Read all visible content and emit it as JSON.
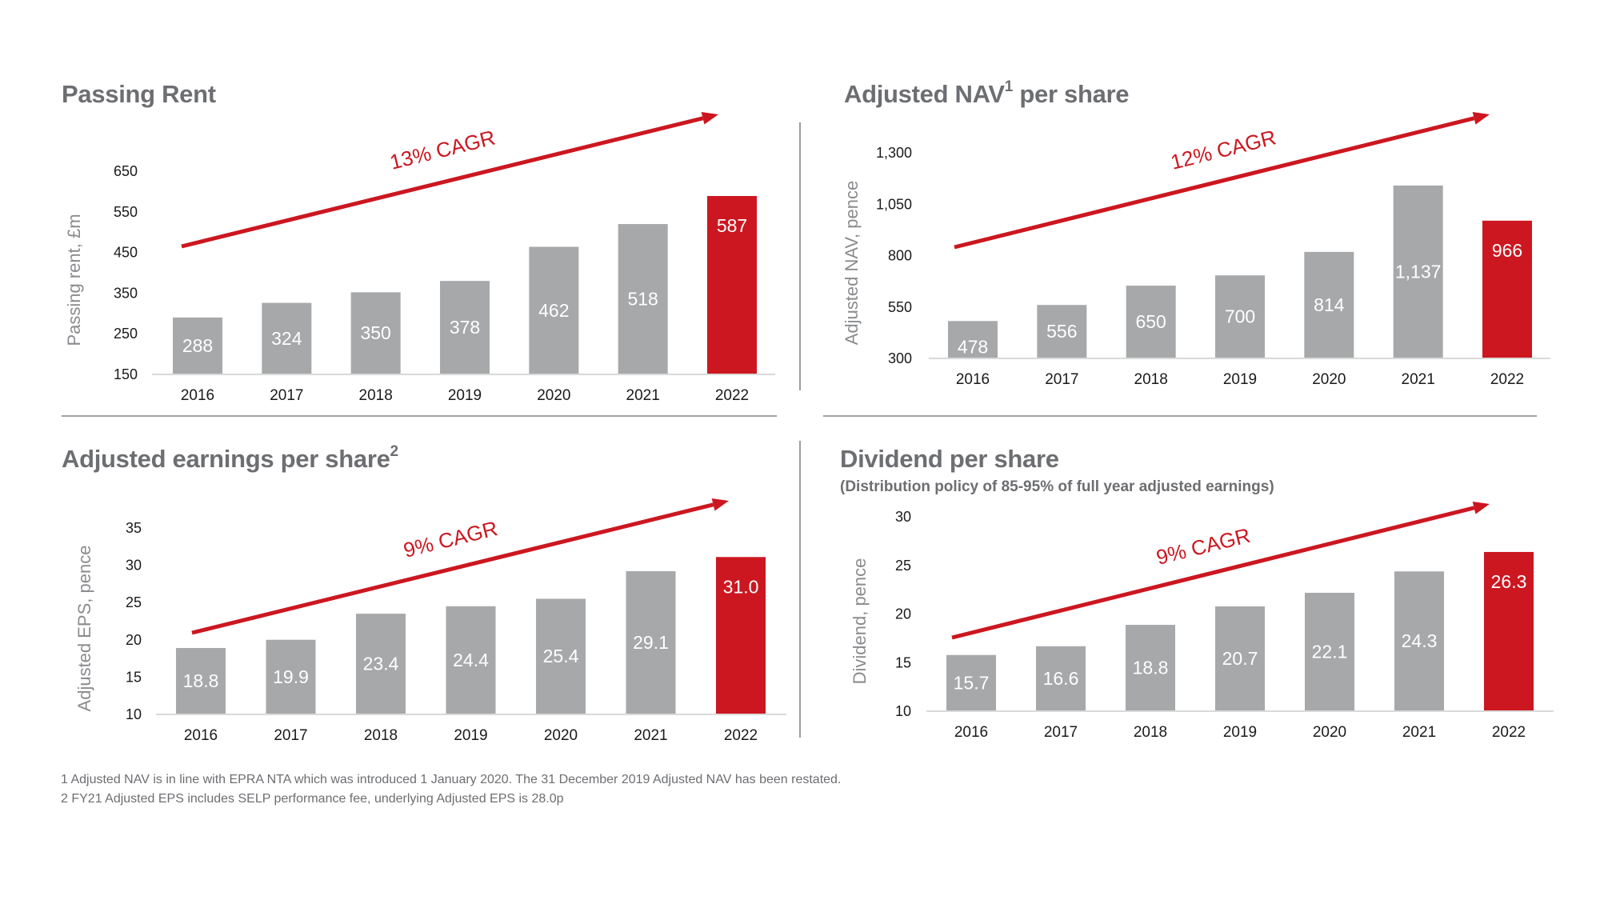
{
  "colors": {
    "bar": "#a7a8aa",
    "highlight": "#cc1720",
    "arrow": "#cc1720",
    "title": "#6d6e71",
    "axis_label": "#8a8b8e",
    "tick": "#1a1a1a",
    "divider": "#9d9d9f",
    "baseline": "#d9d9d9"
  },
  "panels": [
    {
      "title": "Passing Rent",
      "title_sup": "",
      "subtitle": ""
    },
    {
      "title": "Adjusted NAV",
      "title_sup": "1",
      "title_after": " per share",
      "subtitle": ""
    },
    {
      "title": "Adjusted earnings per share",
      "title_sup": "2",
      "subtitle": ""
    },
    {
      "title": "Dividend per share",
      "title_sup": "",
      "subtitle": "(Distribution policy of 85-95% of full year adjusted earnings)"
    }
  ],
  "footnotes": [
    "1 Adjusted NAV is in line with EPRA NTA which was introduced 1 January 2020. The 31 December 2019 Adjusted NAV has been restated.",
    "2 FY21 Adjusted EPS includes SELP performance fee, underlying Adjusted EPS is 28.0p"
  ],
  "chart_data": [
    {
      "type": "bar",
      "title": "Passing Rent",
      "xlabel": "",
      "ylabel": "Passing rent, £m",
      "categories": [
        "2016",
        "2017",
        "2018",
        "2019",
        "2020",
        "2021",
        "2022"
      ],
      "values": [
        288,
        324,
        350,
        378,
        462,
        518,
        587
      ],
      "value_labels": [
        "288",
        "324",
        "350",
        "378",
        "462",
        "518",
        "587"
      ],
      "highlight_index": 6,
      "ylim": [
        150,
        650
      ],
      "yticks": [
        150,
        250,
        350,
        450,
        550,
        650
      ],
      "ytick_labels": [
        "150",
        "250",
        "350",
        "450",
        "550",
        "650"
      ],
      "grid": false,
      "annotation": "13% CAGR"
    },
    {
      "type": "bar",
      "title": "Adjusted NAV per share",
      "xlabel": "",
      "ylabel": "Adjusted NAV, pence",
      "categories": [
        "2016",
        "2017",
        "2018",
        "2019",
        "2020",
        "2021",
        "2022"
      ],
      "values": [
        478,
        556,
        650,
        700,
        814,
        1137,
        966
      ],
      "value_labels": [
        "478",
        "556",
        "650",
        "700",
        "814",
        "1,137",
        "966"
      ],
      "highlight_index": 6,
      "ylim": [
        300,
        1300
      ],
      "yticks": [
        300,
        550,
        800,
        1050,
        1300
      ],
      "ytick_labels": [
        "300",
        "550",
        "800",
        "1,050",
        "1,300"
      ],
      "grid": false,
      "annotation": "12% CAGR"
    },
    {
      "type": "bar",
      "title": "Adjusted earnings per share",
      "xlabel": "",
      "ylabel": "Adjusted EPS, pence",
      "categories": [
        "2016",
        "2017",
        "2018",
        "2019",
        "2020",
        "2021",
        "2022"
      ],
      "values": [
        18.8,
        19.9,
        23.4,
        24.4,
        25.4,
        29.1,
        31.0
      ],
      "value_labels": [
        "18.8",
        "19.9",
        "23.4",
        "24.4",
        "25.4",
        "29.1",
        "31.0"
      ],
      "highlight_index": 6,
      "ylim": [
        10,
        35
      ],
      "yticks": [
        10,
        15,
        20,
        25,
        30,
        35
      ],
      "ytick_labels": [
        "10",
        "15",
        "20",
        "25",
        "30",
        "35"
      ],
      "grid": false,
      "annotation": "9% CAGR"
    },
    {
      "type": "bar",
      "title": "Dividend per share",
      "xlabel": "",
      "ylabel": "Dividend, pence",
      "categories": [
        "2016",
        "2017",
        "2018",
        "2019",
        "2020",
        "2021",
        "2022"
      ],
      "values": [
        15.7,
        16.6,
        18.8,
        20.7,
        22.1,
        24.3,
        26.3
      ],
      "value_labels": [
        "15.7",
        "16.6",
        "18.8",
        "20.7",
        "22.1",
        "24.3",
        "26.3"
      ],
      "highlight_index": 6,
      "ylim": [
        10,
        30
      ],
      "yticks": [
        10,
        15,
        20,
        25,
        30
      ],
      "ytick_labels": [
        "10",
        "15",
        "20",
        "25",
        "30"
      ],
      "grid": false,
      "annotation": "9% CAGR"
    }
  ]
}
